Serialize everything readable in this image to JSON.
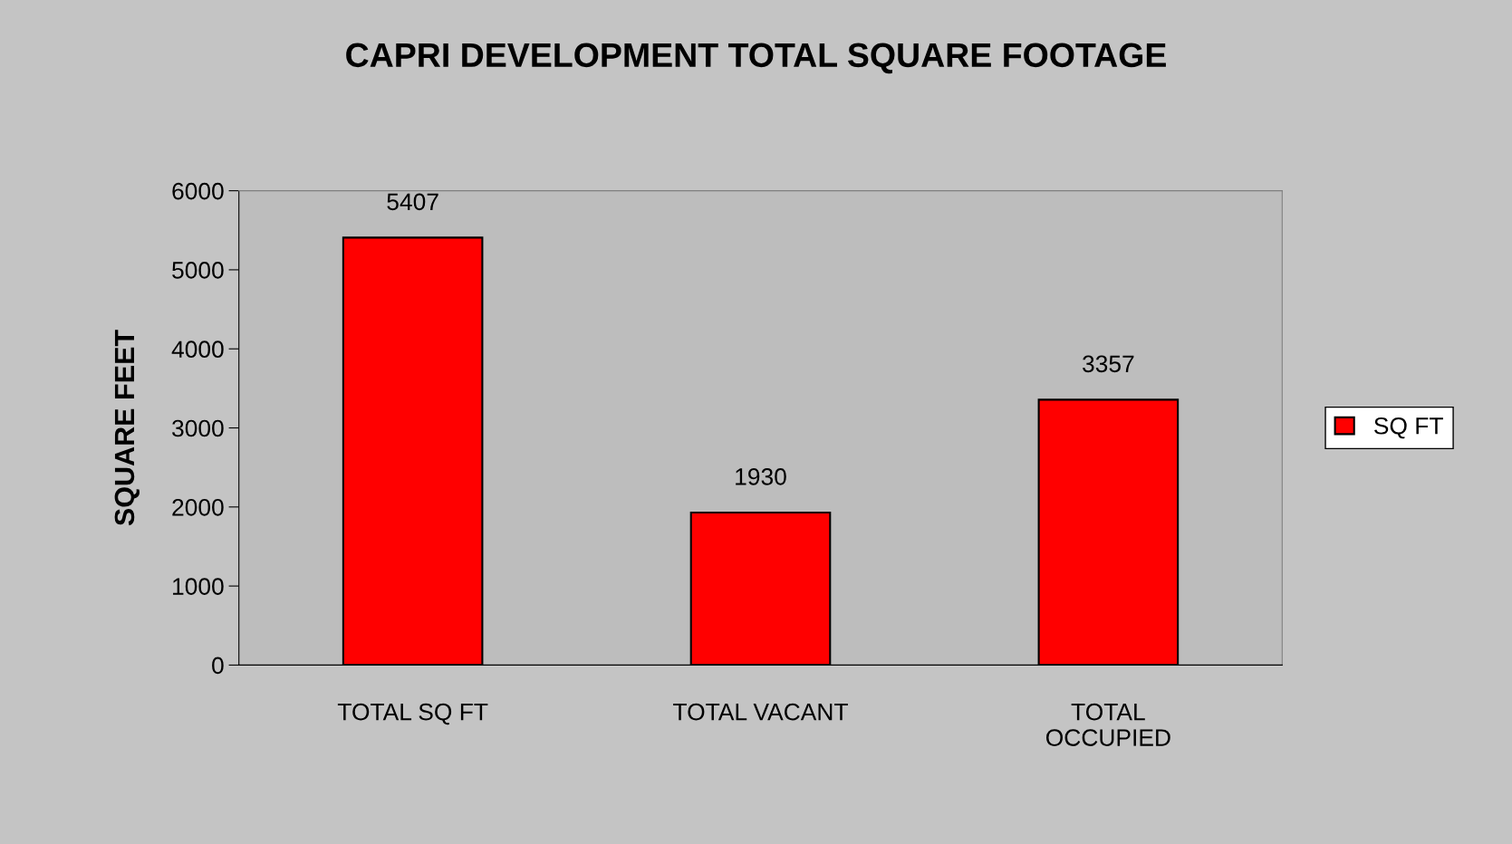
{
  "chart_data": {
    "type": "bar",
    "title": "CAPRI DEVELOPMENT TOTAL SQUARE FOOTAGE",
    "ylabel": "SQUARE FEET",
    "categories": [
      "TOTAL SQ FT",
      "TOTAL VACANT",
      "TOTAL\nOCCUPIED"
    ],
    "series": [
      {
        "name": "SQ FT",
        "color": "#ff0000",
        "values": [
          5407,
          1930,
          3357
        ]
      }
    ],
    "ylim": [
      0,
      6000
    ],
    "yticks": [
      0,
      1000,
      2000,
      3000,
      4000,
      5000,
      6000
    ],
    "grid": false,
    "legend": "right",
    "data_labels": true
  }
}
